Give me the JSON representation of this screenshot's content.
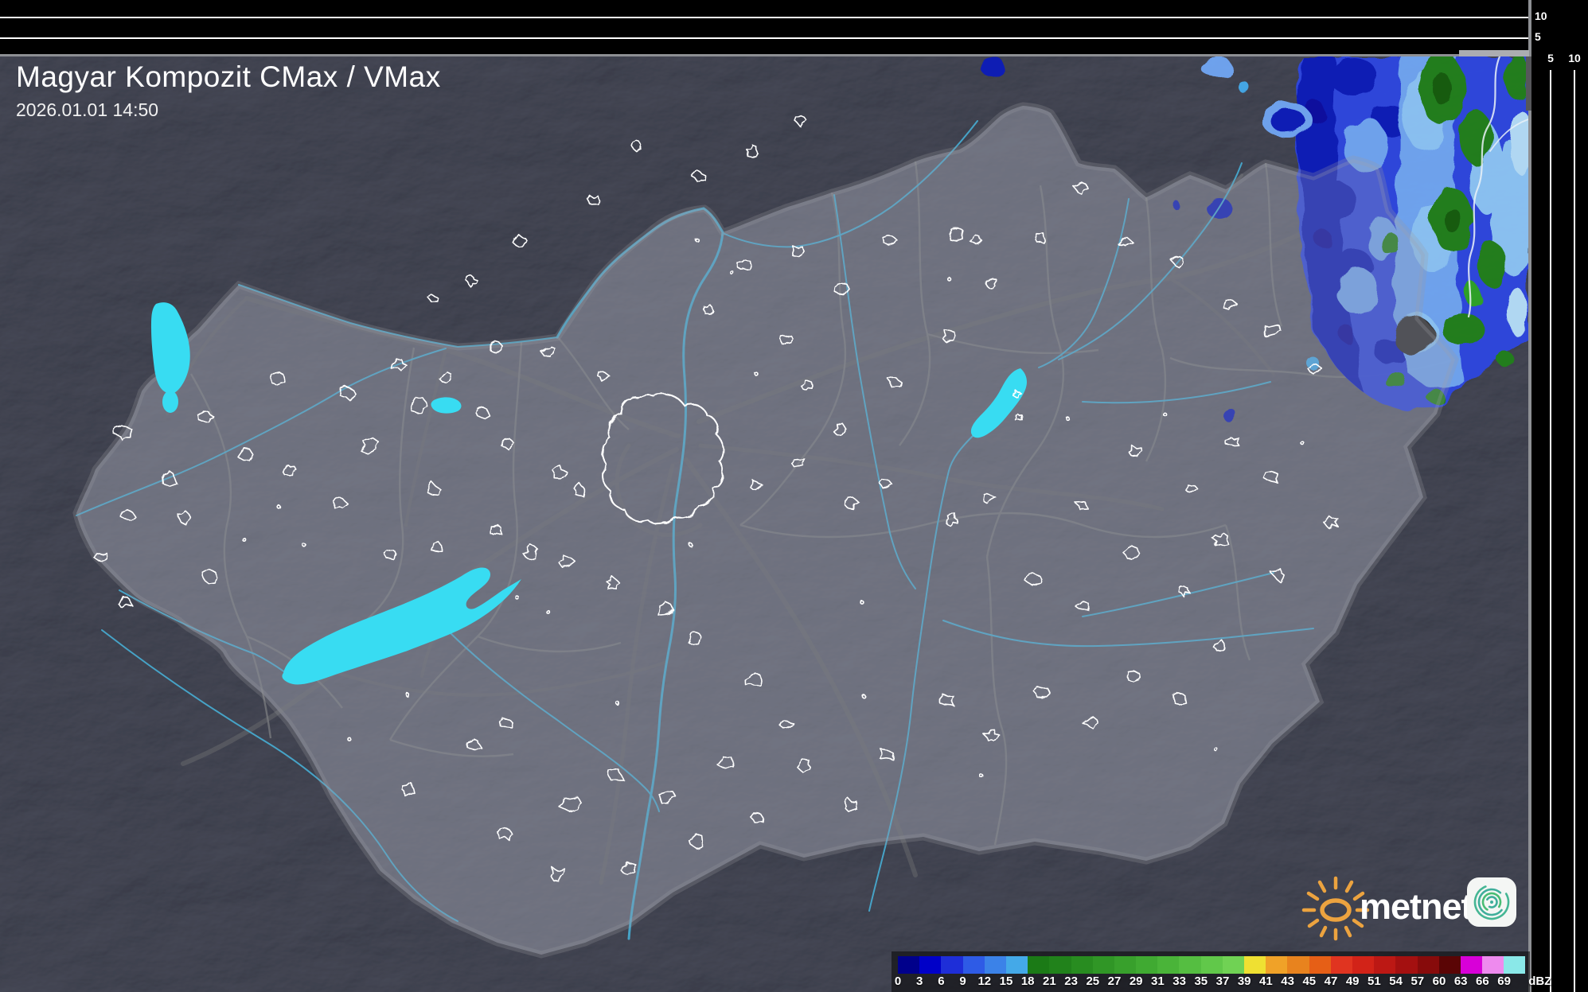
{
  "header": {
    "title": "Magyar Kompozit CMax / VMax",
    "timestamp": "2026.01.01 14:50"
  },
  "profile_panels": {
    "top_axis_labels": [
      "10",
      "5"
    ],
    "right_axis_labels": [
      "5",
      "10"
    ]
  },
  "legend": {
    "unit": "dBZ",
    "entries": [
      {
        "label": "0",
        "color": "#00008B"
      },
      {
        "label": "3",
        "color": "#0000C8"
      },
      {
        "label": "6",
        "color": "#1E2ED8"
      },
      {
        "label": "9",
        "color": "#2E5BE6"
      },
      {
        "label": "12",
        "color": "#3B82E8"
      },
      {
        "label": "15",
        "color": "#44A9E8"
      },
      {
        "label": "18",
        "color": "#1B7A16"
      },
      {
        "label": "21",
        "color": "#21821B"
      },
      {
        "label": "23",
        "color": "#288C20"
      },
      {
        "label": "25",
        "color": "#309626"
      },
      {
        "label": "27",
        "color": "#38A02C"
      },
      {
        "label": "29",
        "color": "#40AA32"
      },
      {
        "label": "31",
        "color": "#4AB439"
      },
      {
        "label": "33",
        "color": "#55BE41"
      },
      {
        "label": "35",
        "color": "#61C84A"
      },
      {
        "label": "37",
        "color": "#70D254"
      },
      {
        "label": "39",
        "color": "#EFE032"
      },
      {
        "label": "41",
        "color": "#F0A228"
      },
      {
        "label": "43",
        "color": "#E8831E"
      },
      {
        "label": "45",
        "color": "#E65F16"
      },
      {
        "label": "47",
        "color": "#E03420"
      },
      {
        "label": "49",
        "color": "#D22318"
      },
      {
        "label": "51",
        "color": "#BC1814"
      },
      {
        "label": "54",
        "color": "#A41010"
      },
      {
        "label": "57",
        "color": "#870B0B"
      },
      {
        "label": "60",
        "color": "#5A0505"
      },
      {
        "label": "63",
        "color": "#D800D8"
      },
      {
        "label": "66",
        "color": "#EE8AEE"
      },
      {
        "label": "69",
        "color": "#8AE8E8"
      }
    ]
  },
  "branding": {
    "logo_text": "metnet"
  },
  "map": {
    "colors": {
      "lake": "#38DCF2",
      "river": "#47A9CE",
      "country_border": "#9B9DA1",
      "county_border": "#77797D",
      "road": "#66686C",
      "settlement_outline": "#FFFFFF"
    }
  }
}
